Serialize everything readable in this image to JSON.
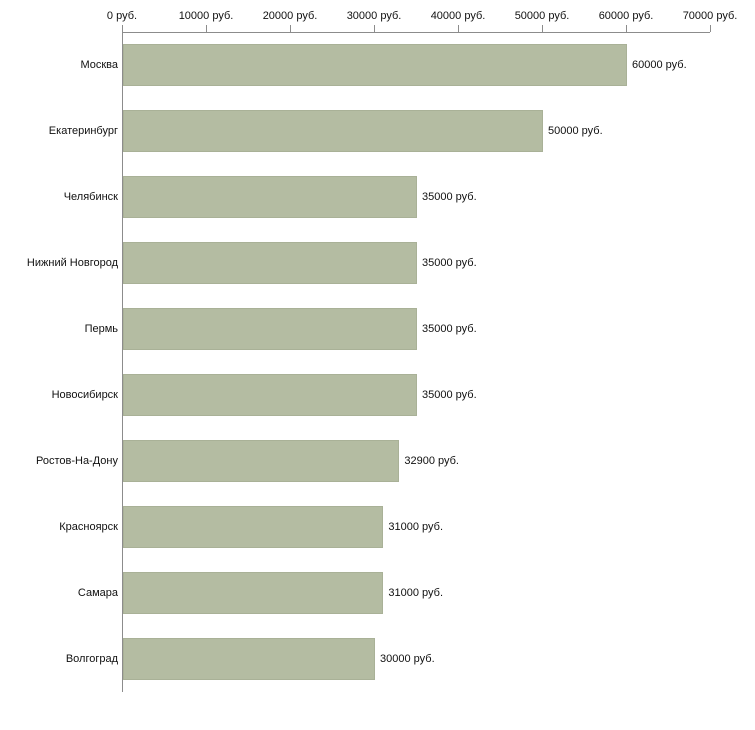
{
  "chart_data": {
    "type": "bar",
    "orientation": "horizontal",
    "title": "",
    "xlabel": "",
    "ylabel": "",
    "xlim": [
      0,
      70000
    ],
    "grid": false,
    "legend": false,
    "x_tick_values": [
      0,
      10000,
      20000,
      30000,
      40000,
      50000,
      60000,
      70000
    ],
    "x_tick_labels": [
      "0 руб.",
      "10000 руб.",
      "20000 руб.",
      "30000 руб.",
      "40000 руб.",
      "50000 руб.",
      "60000 руб.",
      "70000 руб."
    ],
    "categories": [
      "Москва",
      "Екатеринбург",
      "Челябинск",
      "Нижний Новгород",
      "Пермь",
      "Новосибирск",
      "Ростов-На-Дону",
      "Красноярск",
      "Самара",
      "Волгоград"
    ],
    "values": [
      60000,
      50000,
      35000,
      35000,
      35000,
      35000,
      32900,
      31000,
      31000,
      30000
    ],
    "value_labels": [
      "60000 руб.",
      "50000 руб.",
      "35000 руб.",
      "35000 руб.",
      "35000 руб.",
      "35000 руб.",
      "32900 руб.",
      "31000 руб.",
      "31000 руб.",
      "30000 руб."
    ],
    "bar_color": "#b4bca2",
    "bar_border_color": "#a9b197",
    "axis_color": "#8c8c8c",
    "text_color": "#111111"
  }
}
